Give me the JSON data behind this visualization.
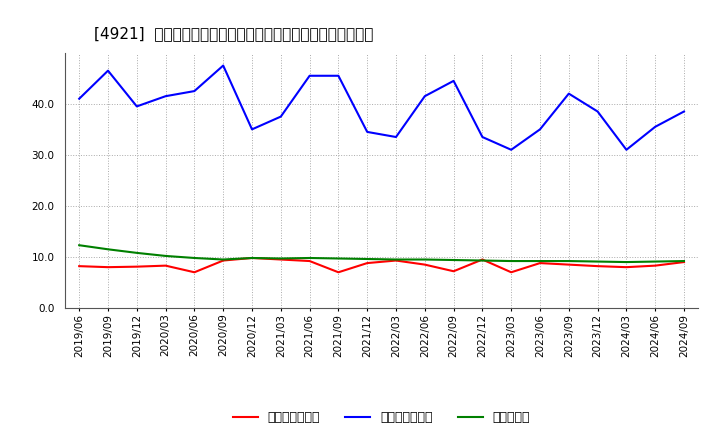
{
  "title": "[4921]  売上債権回転率、買入債務回転率、在庫回転率の推移",
  "x_labels": [
    "2019/06",
    "2019/09",
    "2019/12",
    "2020/03",
    "2020/06",
    "2020/09",
    "2020/12",
    "2021/03",
    "2021/06",
    "2021/09",
    "2021/12",
    "2022/03",
    "2022/06",
    "2022/09",
    "2022/12",
    "2023/03",
    "2023/06",
    "2023/09",
    "2023/12",
    "2024/03",
    "2024/06",
    "2024/09"
  ],
  "receivables_turnover": [
    8.2,
    8.0,
    8.1,
    8.3,
    7.0,
    9.3,
    9.8,
    9.5,
    9.2,
    7.0,
    8.8,
    9.3,
    8.5,
    7.2,
    9.5,
    7.0,
    8.8,
    8.5,
    8.2,
    8.0,
    8.3,
    9.0
  ],
  "payables_turnover": [
    41.0,
    46.5,
    39.5,
    41.5,
    42.5,
    47.5,
    35.0,
    37.5,
    45.5,
    45.5,
    34.5,
    33.5,
    41.5,
    44.5,
    33.5,
    31.0,
    35.0,
    42.0,
    38.5,
    31.0,
    35.5,
    38.5
  ],
  "inventory_turnover": [
    12.3,
    11.5,
    10.8,
    10.2,
    9.8,
    9.5,
    9.8,
    9.7,
    9.8,
    9.7,
    9.6,
    9.5,
    9.5,
    9.4,
    9.3,
    9.2,
    9.2,
    9.2,
    9.1,
    9.0,
    9.1,
    9.2
  ],
  "line_colors": {
    "receivables": "#ff0000",
    "payables": "#0000ff",
    "inventory": "#008000"
  },
  "ylim": [
    0,
    50
  ],
  "yticks": [
    0.0,
    10.0,
    20.0,
    30.0,
    40.0
  ],
  "background_color": "#ffffff",
  "plot_background": "#ffffff",
  "grid_color": "#aaaaaa",
  "legend_labels": {
    "receivables": "売上債権回転率",
    "payables": "買入債務回転率",
    "inventory": "在庫回転率"
  },
  "title_fontsize": 11,
  "tick_fontsize": 7.5,
  "legend_fontsize": 9
}
